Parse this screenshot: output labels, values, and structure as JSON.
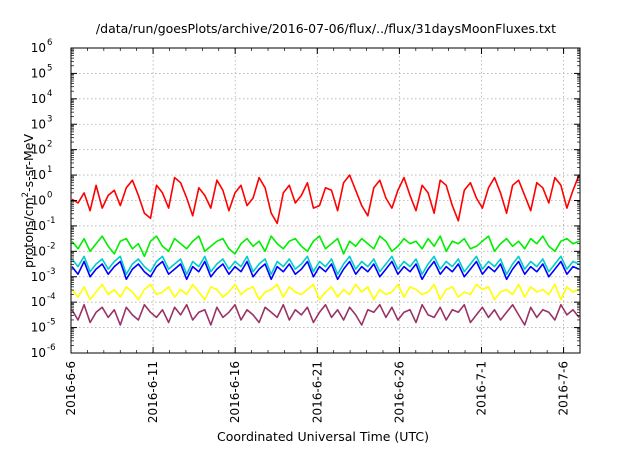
{
  "chart_data": {
    "type": "line",
    "title": "/data/run/goesPlots/archive/2016-07-06/flux/../flux/31daysMoonFluxes.txt",
    "xlabel": "Coordinated Universal Time (UTC)",
    "ylabel": "protons/cm²-s-sr-MeV",
    "ylabel_parts": {
      "pre": "protons/cm",
      "sup": "2",
      "post": "-s-sr-MeV"
    },
    "y_scale": "log",
    "ylim": [
      1e-06,
      1000000.0
    ],
    "y_ticks": [
      {
        "base": "10",
        "exp": "6"
      },
      {
        "base": "10",
        "exp": "5"
      },
      {
        "base": "10",
        "exp": "4"
      },
      {
        "base": "10",
        "exp": "3"
      },
      {
        "base": "10",
        "exp": "2"
      },
      {
        "base": "10",
        "exp": "1"
      },
      {
        "base": "10",
        "exp": "0"
      },
      {
        "base": "10",
        "exp": "-1"
      },
      {
        "base": "10",
        "exp": "-2"
      },
      {
        "base": "10",
        "exp": "-3"
      },
      {
        "base": "10",
        "exp": "-4"
      },
      {
        "base": "10",
        "exp": "-5"
      },
      {
        "base": "10",
        "exp": "-6"
      }
    ],
    "xlim": [
      "2016-06-06",
      "2016-07-07"
    ],
    "x_ticks": [
      "2016-6-6",
      "2016-6-11",
      "2016-6-16",
      "2016-6-21",
      "2016-6-26",
      "2016-7-1",
      "2016-7-6"
    ],
    "grid": true,
    "series": [
      {
        "color": "#ff0000",
        "values_log10": [
          0.05,
          -0.1,
          0.3,
          -0.4,
          0.6,
          -0.3,
          0.2,
          0.4,
          -0.2,
          0.5,
          0.8,
          0.2,
          -0.5,
          -0.7,
          0.6,
          0.3,
          -0.3,
          0.9,
          0.7,
          0.1,
          -0.6,
          0.5,
          0.2,
          -0.3,
          0.8,
          0.4,
          -0.4,
          0.3,
          0.6,
          -0.2,
          0.1,
          0.9,
          0.5,
          -0.5,
          -0.9,
          0.3,
          0.6,
          -0.1,
          0.2,
          0.7,
          -0.3,
          -0.2,
          0.5,
          0.4,
          -0.4,
          0.7,
          1.0,
          0.4,
          -0.2,
          -0.6,
          0.5,
          0.8,
          0.1,
          -0.3,
          0.4,
          0.9,
          0.2,
          -0.4,
          0.6,
          0.3,
          -0.5,
          0.8,
          0.6,
          -0.2,
          -0.8,
          0.4,
          0.7,
          0.1,
          -0.3,
          0.5,
          0.9,
          0.3,
          -0.5,
          0.6,
          0.8,
          0.2,
          -0.4,
          0.7,
          0.5,
          -0.1,
          0.9,
          0.6,
          -0.3,
          0.4,
          1.0
        ]
      },
      {
        "color": "#00ee00",
        "values_log10": [
          -1.6,
          -1.9,
          -1.5,
          -2.0,
          -1.7,
          -1.4,
          -1.8,
          -2.1,
          -1.6,
          -1.5,
          -1.9,
          -1.7,
          -2.2,
          -1.6,
          -1.4,
          -1.8,
          -2.0,
          -1.5,
          -1.7,
          -1.9,
          -1.6,
          -1.4,
          -2.0,
          -1.8,
          -1.6,
          -1.5,
          -1.9,
          -2.1,
          -1.7,
          -1.5,
          -1.8,
          -1.6,
          -2.0,
          -1.4,
          -1.7,
          -1.9,
          -1.6,
          -1.5,
          -1.8,
          -2.0,
          -1.6,
          -1.4,
          -1.9,
          -1.7,
          -1.5,
          -2.1,
          -1.6,
          -1.8,
          -1.5,
          -1.7,
          -1.9,
          -1.4,
          -1.6,
          -2.0,
          -1.8,
          -1.5,
          -1.7,
          -1.6,
          -1.9,
          -1.5,
          -1.8,
          -1.4,
          -2.0,
          -1.6,
          -1.7,
          -1.5,
          -1.9,
          -1.8,
          -1.6,
          -1.4,
          -2.0,
          -1.7,
          -1.5,
          -1.8,
          -1.6,
          -1.9,
          -1.5,
          -1.7,
          -1.4,
          -1.8,
          -2.0,
          -1.6,
          -1.5,
          -1.7,
          -1.6
        ]
      },
      {
        "color": "#00cccc",
        "values_log10": [
          -2.3,
          -2.6,
          -2.2,
          -2.8,
          -2.5,
          -2.3,
          -2.7,
          -2.4,
          -2.2,
          -2.9,
          -2.5,
          -2.3,
          -2.6,
          -2.8,
          -2.4,
          -2.2,
          -2.7,
          -2.5,
          -2.3,
          -2.9,
          -2.4,
          -2.6,
          -2.2,
          -2.8,
          -2.5,
          -2.3,
          -2.7,
          -2.4,
          -2.6,
          -2.2,
          -2.8,
          -2.5,
          -2.3,
          -2.9,
          -2.4,
          -2.6,
          -2.3,
          -2.7,
          -2.5,
          -2.2,
          -2.8,
          -2.4,
          -2.6,
          -2.3,
          -2.9,
          -2.5,
          -2.2,
          -2.7,
          -2.4,
          -2.6,
          -2.3,
          -2.8,
          -2.5,
          -2.2,
          -2.7,
          -2.4,
          -2.6,
          -2.3,
          -2.9,
          -2.5,
          -2.2,
          -2.7,
          -2.4,
          -2.6,
          -2.3,
          -2.8,
          -2.5,
          -2.2,
          -2.7,
          -2.4,
          -2.6,
          -2.3,
          -2.9,
          -2.5,
          -2.2,
          -2.7,
          -2.4,
          -2.6,
          -2.3,
          -2.8,
          -2.5,
          -2.2,
          -2.7,
          -2.4,
          -2.5
        ]
      },
      {
        "color": "#0000ff",
        "values_log10": [
          -2.6,
          -2.9,
          -2.4,
          -3.0,
          -2.7,
          -2.5,
          -2.9,
          -2.6,
          -2.4,
          -3.1,
          -2.7,
          -2.5,
          -2.8,
          -3.0,
          -2.6,
          -2.4,
          -2.9,
          -2.7,
          -2.5,
          -3.1,
          -2.6,
          -2.8,
          -2.4,
          -3.0,
          -2.7,
          -2.5,
          -2.9,
          -2.6,
          -2.8,
          -2.4,
          -3.0,
          -2.7,
          -2.5,
          -3.1,
          -2.6,
          -2.8,
          -2.5,
          -2.9,
          -2.7,
          -2.4,
          -3.0,
          -2.6,
          -2.8,
          -2.5,
          -3.1,
          -2.7,
          -2.4,
          -2.9,
          -2.6,
          -2.8,
          -2.5,
          -3.0,
          -2.7,
          -2.4,
          -2.9,
          -2.6,
          -2.8,
          -2.5,
          -3.1,
          -2.7,
          -2.4,
          -2.9,
          -2.6,
          -2.8,
          -2.5,
          -3.0,
          -2.7,
          -2.4,
          -2.9,
          -2.6,
          -2.8,
          -2.5,
          -3.1,
          -2.7,
          -2.4,
          -2.9,
          -2.6,
          -2.8,
          -2.5,
          -3.0,
          -2.7,
          -2.4,
          -2.9,
          -2.6,
          -2.7
        ]
      },
      {
        "color": "#ffff00",
        "values_log10": [
          -3.5,
          -3.8,
          -3.4,
          -3.9,
          -3.6,
          -3.3,
          -3.7,
          -3.5,
          -3.8,
          -3.4,
          -3.6,
          -3.9,
          -3.5,
          -3.3,
          -3.7,
          -3.6,
          -3.4,
          -3.8,
          -3.5,
          -3.7,
          -3.3,
          -3.6,
          -3.9,
          -3.4,
          -3.5,
          -3.8,
          -3.6,
          -3.3,
          -3.7,
          -3.5,
          -3.4,
          -3.9,
          -3.6,
          -3.5,
          -3.3,
          -3.8,
          -3.4,
          -3.6,
          -3.7,
          -3.5,
          -3.3,
          -3.9,
          -3.6,
          -3.4,
          -3.8,
          -3.5,
          -3.7,
          -3.3,
          -3.6,
          -3.4,
          -3.9,
          -3.5,
          -3.7,
          -3.6,
          -3.3,
          -3.8,
          -3.4,
          -3.5,
          -3.7,
          -3.6,
          -3.3,
          -3.9,
          -3.5,
          -3.4,
          -3.8,
          -3.6,
          -3.7,
          -3.3,
          -3.5,
          -3.4,
          -3.9,
          -3.6,
          -3.5,
          -3.7,
          -3.3,
          -3.8,
          -3.4,
          -3.6,
          -3.5,
          -3.7,
          -3.3,
          -3.9,
          -3.4,
          -3.6,
          -3.5
        ]
      },
      {
        "color": "#993366",
        "values_log10": [
          -4.3,
          -4.7,
          -4.1,
          -4.8,
          -4.4,
          -4.2,
          -4.6,
          -4.3,
          -4.9,
          -4.2,
          -4.5,
          -4.7,
          -4.1,
          -4.4,
          -4.6,
          -4.3,
          -4.8,
          -4.2,
          -4.5,
          -4.1,
          -4.7,
          -4.4,
          -4.3,
          -4.9,
          -4.2,
          -4.6,
          -4.4,
          -4.1,
          -4.7,
          -4.3,
          -4.5,
          -4.8,
          -4.2,
          -4.4,
          -4.6,
          -4.1,
          -4.7,
          -4.3,
          -4.5,
          -4.2,
          -4.8,
          -4.4,
          -4.1,
          -4.6,
          -4.3,
          -4.7,
          -4.2,
          -4.5,
          -4.9,
          -4.3,
          -4.4,
          -4.1,
          -4.6,
          -4.2,
          -4.7,
          -4.4,
          -4.3,
          -4.8,
          -4.1,
          -4.5,
          -4.6,
          -4.2,
          -4.7,
          -4.3,
          -4.4,
          -4.1,
          -4.8,
          -4.5,
          -4.2,
          -4.6,
          -4.3,
          -4.7,
          -4.4,
          -4.1,
          -4.5,
          -4.9,
          -4.2,
          -4.6,
          -4.3,
          -4.4,
          -4.7,
          -4.1,
          -4.5,
          -4.3,
          -4.6
        ]
      }
    ]
  }
}
